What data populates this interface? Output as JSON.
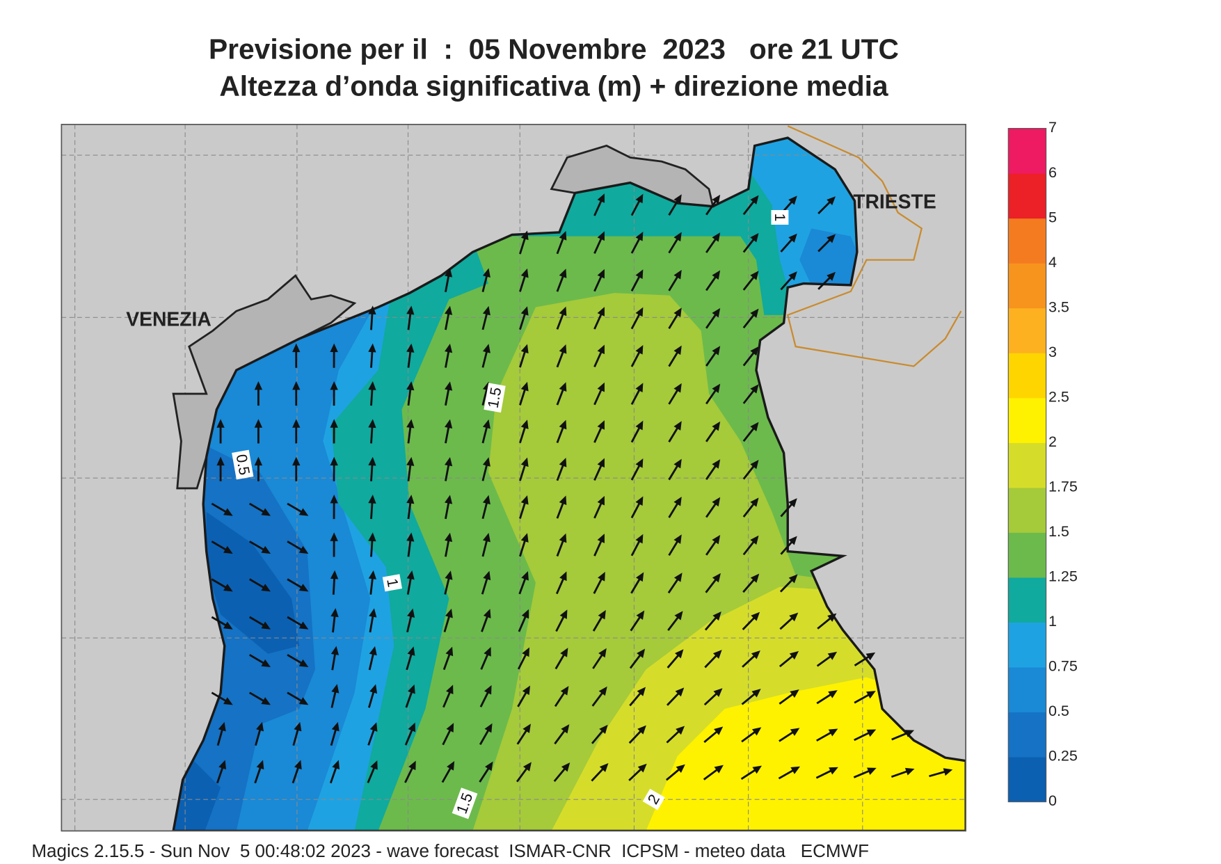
{
  "header": {
    "title": "Previsione per il  :  05 Novembre  2023   ore 21 UTC",
    "subtitle": "Altezza d’onda significativa (m) + direzione media"
  },
  "map": {
    "places": [
      {
        "label": "VENEZIA"
      },
      {
        "label": "TRIESTE"
      }
    ],
    "contour_labels": [
      "1",
      "1.5",
      "0.5",
      "1",
      "1.5",
      "2"
    ]
  },
  "colorbar": {
    "levels": [
      0,
      0.25,
      0.5,
      0.75,
      1,
      1.25,
      1.5,
      1.75,
      2,
      2.5,
      3,
      3.5,
      4,
      5,
      6,
      7
    ],
    "colors": [
      "#0b60b2",
      "#1572c4",
      "#1a89d6",
      "#1fa2e2",
      "#10aa9e",
      "#6cba4c",
      "#a5ca3a",
      "#d5dd2a",
      "#fff200",
      "#ffd500",
      "#fdb120",
      "#f7941d",
      "#f47b20",
      "#ec2027",
      "#ee1a62"
    ]
  },
  "footer": "Magics 2.15.5 - Sun Nov  5 00:48:02 2023 - wave forecast  ISMAR-CNR  ICPSM - meteo data   ECMWF"
}
